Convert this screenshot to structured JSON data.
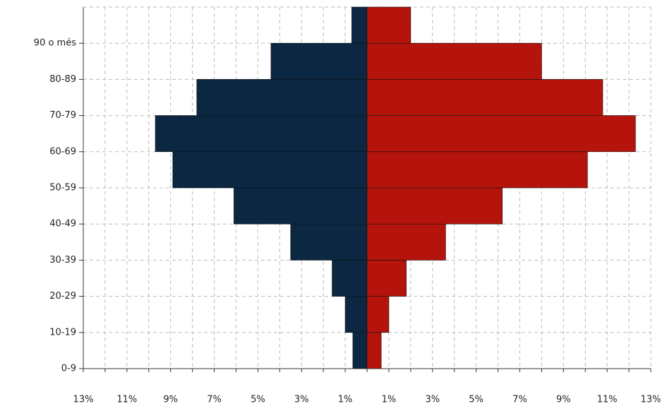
{
  "chart_data": {
    "type": "bar",
    "orientation": "horizontal",
    "categories": [
      "0-9",
      "10-19",
      "20-29",
      "30-39",
      "40-49",
      "50-59",
      "60-69",
      "70-79",
      "80-89",
      "90 o més"
    ],
    "series": [
      {
        "color": "#0b2742",
        "values": [
          -0.65,
          -1.0,
          -1.6,
          -3.5,
          -6.1,
          -8.9,
          -9.7,
          -7.8,
          -4.4,
          -0.7
        ]
      },
      {
        "color": "#b5140c",
        "values": [
          0.65,
          1.0,
          1.8,
          3.6,
          6.2,
          10.1,
          12.3,
          10.8,
          8.0,
          2.0
        ]
      }
    ],
    "xlim": [
      -13,
      13
    ],
    "xticks": [
      {
        "value": -13,
        "label": "13%"
      },
      {
        "value": -11,
        "label": "11%"
      },
      {
        "value": -9,
        "label": "9%"
      },
      {
        "value": -7,
        "label": "7%"
      },
      {
        "value": -5,
        "label": "5%"
      },
      {
        "value": -3,
        "label": "3%"
      },
      {
        "value": -1,
        "label": "1%"
      },
      {
        "value": 1,
        "label": "1%"
      },
      {
        "value": 3,
        "label": "3%"
      },
      {
        "value": 5,
        "label": "5%"
      },
      {
        "value": 7,
        "label": "7%"
      },
      {
        "value": 9,
        "label": "9%"
      },
      {
        "value": 11,
        "label": "11%"
      },
      {
        "value": 13,
        "label": "13%"
      }
    ],
    "xminorticks": [
      -12,
      -10,
      -8,
      -6,
      -4,
      -2,
      0,
      2,
      4,
      6,
      8,
      10,
      12
    ],
    "grid": true
  }
}
